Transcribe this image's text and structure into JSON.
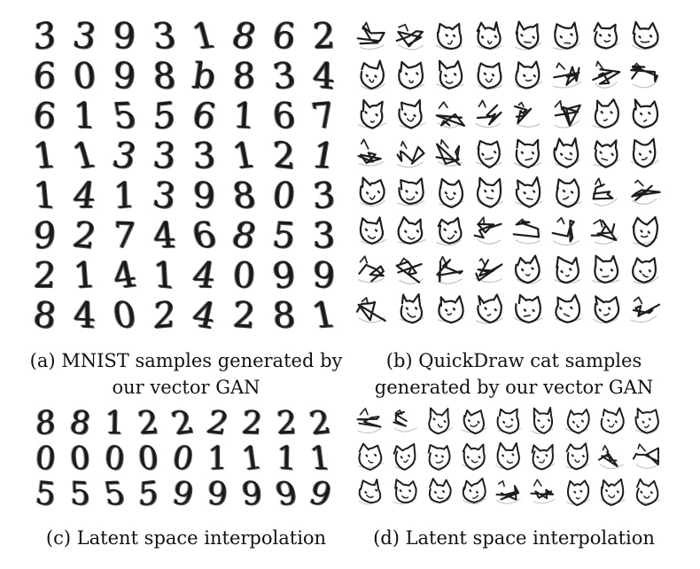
{
  "panels": {
    "a": {
      "caption_line1": "(a) MNIST samples generated by",
      "caption_line2": "our vector GAN",
      "rows": [
        [
          "3",
          "3",
          "9",
          "3",
          "1",
          "8",
          "6",
          "2"
        ],
        [
          "6",
          "0",
          "9",
          "8",
          "b",
          "8",
          "3",
          "4"
        ],
        [
          "6",
          "1",
          "5",
          "5",
          "6",
          "1",
          "6",
          "7"
        ],
        [
          "1",
          "1",
          "3",
          "3",
          "3",
          "1",
          "2",
          "1"
        ],
        [
          "1",
          "4",
          "1",
          "3",
          "9",
          "8",
          "0",
          "3"
        ],
        [
          "9",
          "2",
          "7",
          "4",
          "6",
          "8",
          "5",
          "3"
        ],
        [
          "2",
          "1",
          "4",
          "1",
          "4",
          "0",
          "9",
          "9"
        ],
        [
          "8",
          "4",
          "0",
          "2",
          "4",
          "2",
          "8",
          "1"
        ]
      ]
    },
    "b": {
      "caption_line1": "(b) QuickDraw cat samples",
      "caption_line2": "generated by our vector GAN",
      "rows": 8,
      "cols": 8
    },
    "c": {
      "caption": "(c) Latent space interpolation",
      "rows": [
        [
          "8",
          "8",
          "1",
          "2",
          "2",
          "2",
          "2",
          "2",
          "2"
        ],
        [
          "0",
          "0",
          "0",
          "0",
          "0",
          "1",
          "1",
          "1",
          "1"
        ],
        [
          "5",
          "5",
          "5",
          "5",
          "9",
          "9",
          "9",
          "9",
          "9"
        ]
      ]
    },
    "d": {
      "caption": "(d) Latent space interpolation",
      "rows": 3,
      "cols": 9
    }
  }
}
